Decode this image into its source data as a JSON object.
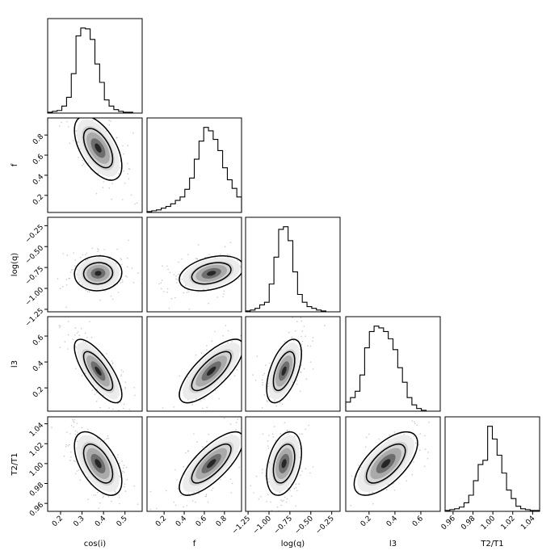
{
  "chart_data": {
    "type": "corner",
    "title": "",
    "parameters": [
      {
        "key": "cosi",
        "label": "cos(i)",
        "range": [
          0.14,
          0.58
        ],
        "ticks": [
          0.2,
          0.3,
          0.4,
          0.5
        ],
        "tick_labels": [
          "0.2",
          "0.3",
          "0.4",
          "0.5"
        ],
        "mean": 0.375,
        "sd": 0.045
      },
      {
        "key": "f",
        "label": "f",
        "range": [
          0.03,
          0.97
        ],
        "ticks": [
          0.2,
          0.4,
          0.6,
          0.8
        ],
        "tick_labels": [
          "0.2",
          "0.4",
          "0.6",
          "0.8"
        ],
        "mean": 0.67,
        "sd": 0.13
      },
      {
        "key": "logq",
        "label": "log(q)",
        "range": [
          -1.28,
          -0.15
        ],
        "ticks": [
          -1.25,
          -1.0,
          -0.75,
          -0.5,
          -0.25
        ],
        "tick_labels": [
          "−1.25",
          "−1.00",
          "−0.75",
          "−0.50",
          "−0.25"
        ],
        "mean": -0.82,
        "sd": 0.085
      },
      {
        "key": "l3",
        "label": "l3",
        "range": [
          0.02,
          0.75
        ],
        "ticks": [
          0.2,
          0.4,
          0.6
        ],
        "tick_labels": [
          "0.2",
          "0.4",
          "0.6"
        ],
        "mean": 0.33,
        "sd": 0.1
      },
      {
        "key": "t2t1",
        "label": "T2/T1",
        "range": [
          0.952,
          1.047
        ],
        "ticks": [
          0.96,
          0.98,
          1.0,
          1.02,
          1.04
        ],
        "tick_labels": [
          "0.96",
          "0.98",
          "1.00",
          "1.02",
          "1.04"
        ],
        "mean": 1.0,
        "sd": 0.013
      }
    ],
    "histograms": [
      {
        "param": "cos(i)",
        "bins": 20,
        "counts": [
          1,
          2,
          3,
          8,
          18,
          45,
          88,
          97,
          96,
          84,
          56,
          35,
          15,
          8,
          4,
          2,
          1,
          1,
          0,
          0
        ]
      },
      {
        "param": "f",
        "bins": 20,
        "counts": [
          1,
          2,
          3,
          5,
          7,
          10,
          14,
          18,
          27,
          40,
          62,
          83,
          99,
          95,
          85,
          72,
          52,
          38,
          28,
          18
        ]
      },
      {
        "param": "log(q)",
        "bins": 20,
        "counts": [
          1,
          2,
          4,
          8,
          11,
          32,
          63,
          95,
          98,
          82,
          46,
          20,
          11,
          6,
          4,
          2,
          1,
          0,
          0,
          0
        ]
      },
      {
        "param": "l3",
        "bins": 20,
        "counts": [
          10,
          15,
          22,
          40,
          70,
          88,
          94,
          92,
          88,
          80,
          68,
          48,
          32,
          15,
          7,
          3,
          1,
          0,
          0,
          0
        ]
      },
      {
        "param": "T2/T1",
        "bins": 20,
        "counts": [
          1,
          2,
          3,
          5,
          10,
          19,
          36,
          55,
          60,
          100,
          85,
          66,
          45,
          25,
          15,
          6,
          3,
          2,
          1,
          1
        ]
      }
    ],
    "pairs": [
      {
        "x": "cos(i)",
        "y": "f",
        "correlation": -0.55
      },
      {
        "x": "cos(i)",
        "y": "log(q)",
        "correlation": 0.05
      },
      {
        "x": "f",
        "y": "log(q)",
        "correlation": 0.35
      },
      {
        "x": "cos(i)",
        "y": "l3",
        "correlation": -0.75
      },
      {
        "x": "f",
        "y": "l3",
        "correlation": 0.75
      },
      {
        "x": "log(q)",
        "y": "l3",
        "correlation": 0.55
      },
      {
        "x": "cos(i)",
        "y": "T2/T1",
        "correlation": -0.55
      },
      {
        "x": "f",
        "y": "T2/T1",
        "correlation": 0.75
      },
      {
        "x": "log(q)",
        "y": "T2/T1",
        "correlation": 0.35
      },
      {
        "x": "l3",
        "y": "T2/T1",
        "correlation": 0.65
      }
    ],
    "contour_levels": [
      "1-sigma",
      "2-sigma"
    ],
    "grid": false,
    "legend": "none"
  }
}
